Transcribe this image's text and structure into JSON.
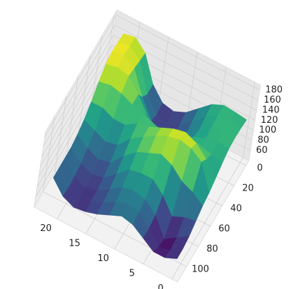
{
  "chart_data": {
    "type": "surface",
    "colormap": "viridis",
    "grid": true,
    "x": [
      0,
      2,
      4,
      6,
      8,
      10,
      12,
      14,
      16,
      18,
      20,
      22
    ],
    "y": [
      0,
      10,
      20,
      30,
      40,
      50,
      60,
      70,
      80,
      90,
      100,
      110
    ],
    "z": [
      [
        125,
        128,
        130,
        128,
        120,
        110,
        100,
        95,
        85,
        75,
        70,
        70
      ],
      [
        128,
        130,
        132,
        130,
        125,
        135,
        150,
        110,
        80,
        60,
        55,
        60
      ],
      [
        130,
        130,
        128,
        125,
        130,
        155,
        165,
        120,
        70,
        45,
        50,
        60
      ],
      [
        120,
        115,
        110,
        115,
        135,
        165,
        170,
        140,
        100,
        80,
        75,
        75
      ],
      [
        100,
        95,
        90,
        100,
        130,
        160,
        165,
        150,
        120,
        100,
        95,
        90
      ],
      [
        80,
        75,
        75,
        90,
        120,
        150,
        155,
        140,
        120,
        105,
        100,
        95
      ],
      [
        70,
        65,
        70,
        95,
        125,
        140,
        140,
        130,
        115,
        100,
        90,
        85
      ],
      [
        75,
        70,
        80,
        110,
        135,
        135,
        125,
        110,
        95,
        85,
        78,
        75
      ],
      [
        100,
        100,
        115,
        140,
        140,
        120,
        100,
        85,
        75,
        70,
        68,
        68
      ],
      [
        150,
        155,
        160,
        165,
        150,
        120,
        95,
        80,
        70,
        65,
        62,
        65
      ],
      [
        170,
        172,
        175,
        170,
        155,
        130,
        105,
        90,
        80,
        75,
        72,
        75
      ],
      [
        165,
        168,
        170,
        165,
        150,
        130,
        115,
        105,
        100,
        100,
        100,
        100
      ]
    ],
    "xlim": [
      -1,
      24
    ],
    "ylim": [
      -5,
      115
    ],
    "zlim": [
      40,
      190
    ],
    "xticks": [
      0,
      5,
      10,
      15,
      20
    ],
    "yticks": [
      0,
      20,
      40,
      60,
      80,
      100
    ],
    "zticks": [
      60,
      80,
      100,
      120,
      140,
      160,
      180
    ]
  }
}
